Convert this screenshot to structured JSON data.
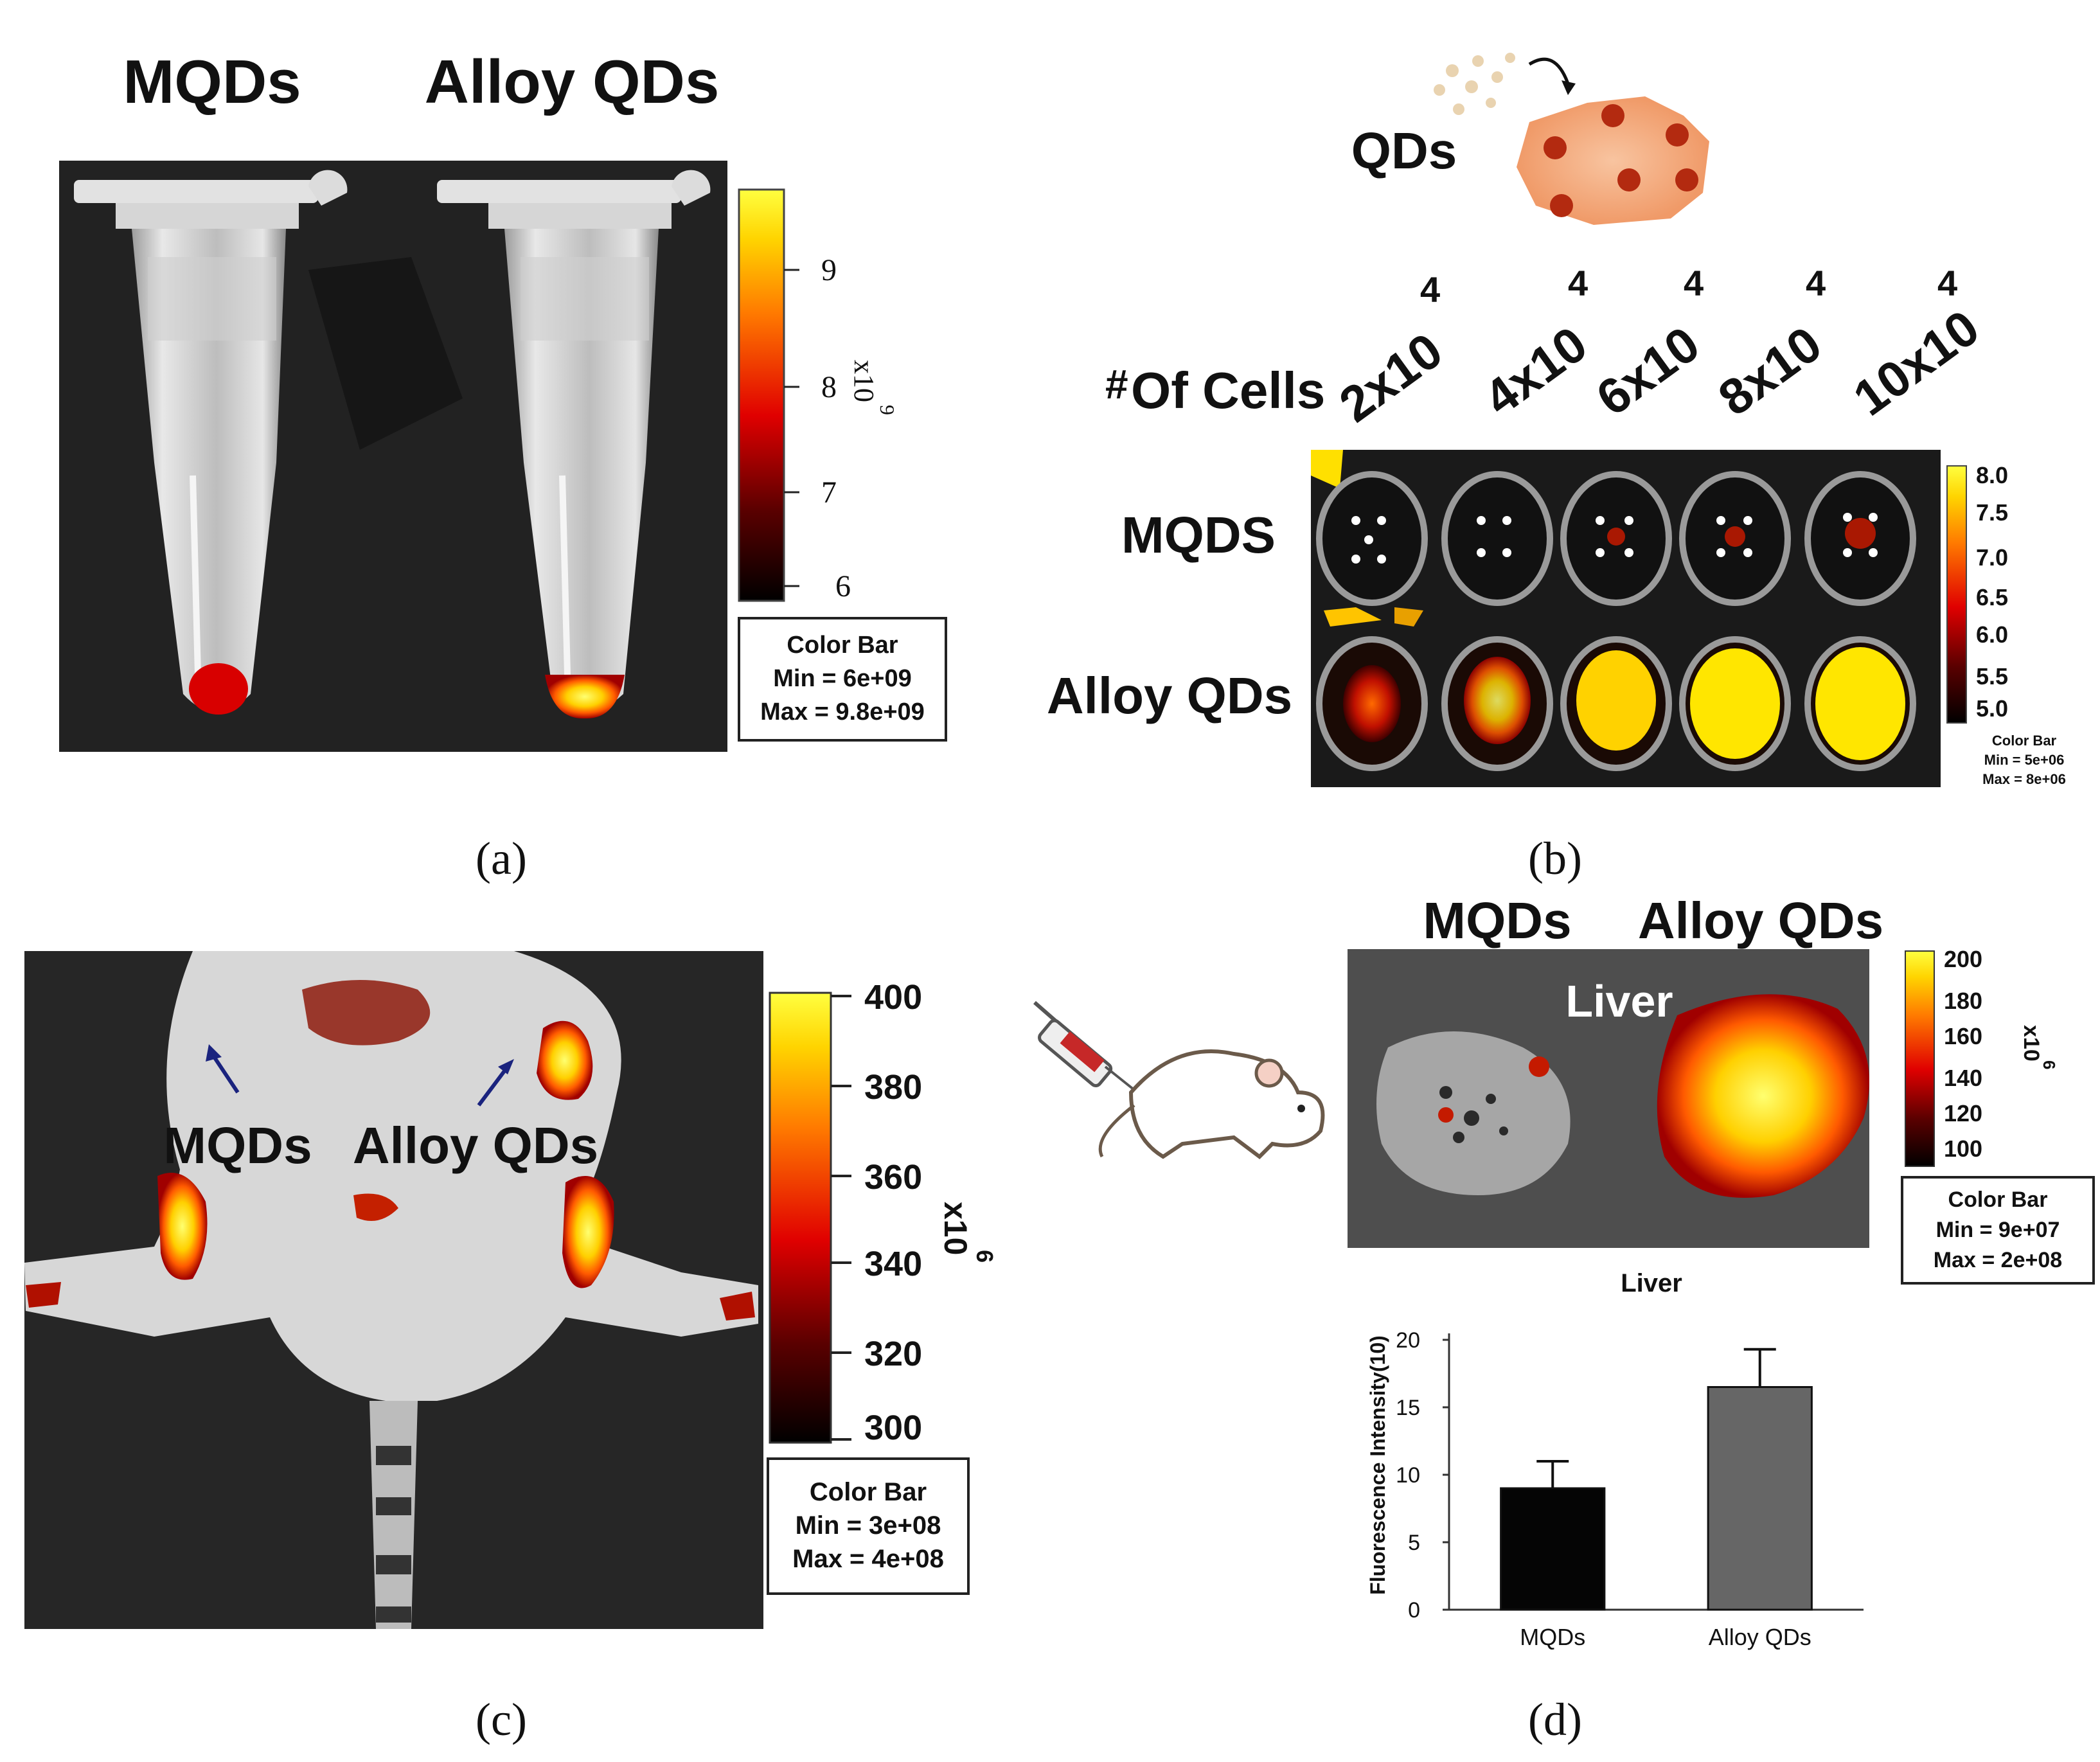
{
  "panel_a": {
    "label_mqds": "MQDs",
    "label_alloy": "Alloy QDs",
    "colorbar_ticks": [
      "9",
      "8",
      "7",
      "6"
    ],
    "colorbar_unit": "x10",
    "colorbar_exp": "9",
    "colorbar_box": {
      "title": "Color Bar",
      "min": "Min = 6e+09",
      "max": "Max = 9.8e+09"
    },
    "caption": "(a)"
  },
  "panel_b": {
    "qds_label": "QDs",
    "cells_hash": "#",
    "cells_label": "Of Cells",
    "cell_counts": [
      {
        "base": "2x10",
        "exp": "4"
      },
      {
        "base": "4x10",
        "exp": "4"
      },
      {
        "base": "6x10",
        "exp": "4"
      },
      {
        "base": "8x10",
        "exp": "4"
      },
      {
        "base": "10x10",
        "exp": "4"
      }
    ],
    "row_mqds": "MQDS",
    "row_alloy": "Alloy QDs",
    "colorbar_ticks": [
      "8.0",
      "7.5",
      "7.0",
      "6.5",
      "6.0",
      "5.5",
      "5.0"
    ],
    "colorbar_box": {
      "title": "Color Bar",
      "min": "Min = 5e+06",
      "max": "Max = 8e+06"
    },
    "caption": "(b)"
  },
  "panel_c": {
    "label_mqds": "MQDs",
    "label_alloy": "Alloy QDs",
    "colorbar_ticks": [
      "400",
      "380",
      "360",
      "340",
      "320",
      "300"
    ],
    "colorbar_unit": "x10",
    "colorbar_exp": "6",
    "colorbar_box": {
      "title": "Color Bar",
      "min": "Min = 3e+08",
      "max": "Max = 4e+08"
    },
    "caption": "(c)"
  },
  "panel_d": {
    "label_mqds": "MQDs",
    "label_alloy": "Alloy QDs",
    "organ_label": "Liver",
    "colorbar_ticks": [
      "200",
      "180",
      "160",
      "140",
      "120",
      "100"
    ],
    "colorbar_unit": "x10",
    "colorbar_exp": "6",
    "colorbar_box": {
      "title": "Color Bar",
      "min": "Min = 9e+07",
      "max": "Max = 2e+08"
    },
    "caption": "(d)"
  },
  "chart_data": {
    "type": "bar",
    "title": "Liver",
    "categories": [
      "MQDs",
      "Alloy QDs"
    ],
    "values": [
      9,
      16.5
    ],
    "errors": [
      2,
      2.8
    ],
    "colors": [
      "#050505",
      "#666666"
    ],
    "xlabel": "",
    "ylabel": "Fluorescence Intensity(10)",
    "ylim": [
      0,
      20
    ],
    "yticks": [
      0,
      5,
      10,
      15,
      20
    ]
  }
}
